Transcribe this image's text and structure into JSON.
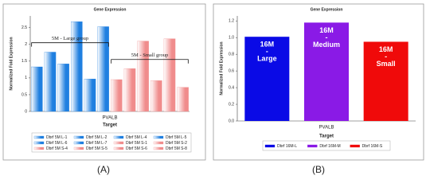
{
  "panel_labels": [
    "(A)",
    "(B)"
  ],
  "chart_data": [
    {
      "type": "bar",
      "title": "Gene Expression",
      "ylabel": "Normalized Fold Expression",
      "xlabel": "PVALB",
      "legend_title": "Target",
      "categories": [
        "Dbrf 5M L-1",
        "Dbrf 5M L-2",
        "Dbrf 5M L-4",
        "Dbrf 5M L-5",
        "Dbrf 5M L-6",
        "Dbrf 5M L-7",
        "Dbrf 5M S-1",
        "Dbrf 5M S-2",
        "Dbrf 5M S-4",
        "Dbrf 5M S-5",
        "Dbrf 5M S-6",
        "Dbrf 5M S-8"
      ],
      "values": [
        1.33,
        1.77,
        1.42,
        2.68,
        0.97,
        2.53,
        0.95,
        1.28,
        2.1,
        0.92,
        2.17,
        0.72
      ],
      "colors": [
        "#1f7fe0",
        "#1f7fe0",
        "#1f7fe0",
        "#1f7fe0",
        "#1f7fe0",
        "#1f7fe0",
        "#f08c8c",
        "#f08c8c",
        "#f08c8c",
        "#f08c8c",
        "#f08c8c",
        "#f08c8c"
      ],
      "annotations": [
        "5M - Large group",
        "5M - Small group"
      ],
      "ylim": [
        0,
        2.85
      ],
      "yticks": [
        0,
        0.5,
        1,
        1.5,
        2,
        2.5
      ],
      "grid": false
    },
    {
      "type": "bar",
      "title": "Gene Expression",
      "ylabel": "Normalized Fold Expression",
      "xlabel": "PVALB",
      "legend_title": "Target",
      "categories": [
        "Dbrf 16M-L",
        "Dbrf 16M-M",
        "Dbrf 16M-S"
      ],
      "values": [
        1.01,
        1.18,
        0.95
      ],
      "colors": [
        "#0a0ae6",
        "#8a1ae6",
        "#f00a0a"
      ],
      "bar_labels": [
        [
          "16M",
          "-",
          "Large"
        ],
        [
          "16M",
          "-",
          "Medium"
        ],
        [
          "16M",
          "-",
          "Small"
        ]
      ],
      "ylim": [
        0,
        1.26
      ],
      "yticks": [
        {
          "value": 0,
          "label": "0.0"
        },
        0.2,
        0.4,
        0.6,
        0.8,
        {
          "value": 1,
          "label": "1.0"
        },
        1.2
      ],
      "grid": false
    }
  ]
}
